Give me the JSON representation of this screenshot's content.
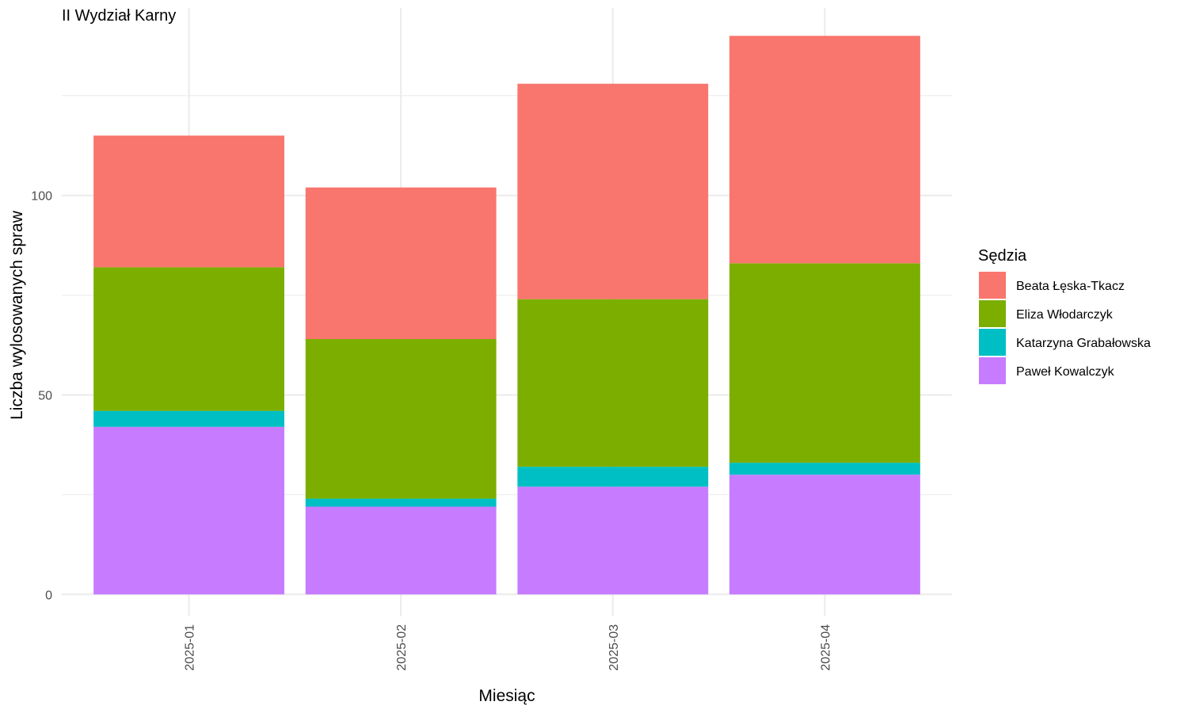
{
  "chart_data": {
    "type": "bar",
    "stacked": true,
    "title": "II Wydział Karny",
    "xlabel": "Miesiąc",
    "ylabel": "Liczba wylosowanych spraw",
    "categories": [
      "2025-01",
      "2025-02",
      "2025-03",
      "2025-04"
    ],
    "ylim": [
      -5.5,
      147
    ],
    "yticks": [
      0,
      50,
      100
    ],
    "grid": true,
    "legend": {
      "title": "Sędzia",
      "position": "right"
    },
    "series": [
      {
        "name": "Paweł Kowalczyk",
        "color": "#C77CFF",
        "values": [
          42,
          22,
          27,
          30
        ]
      },
      {
        "name": "Katarzyna Grabałowska",
        "color": "#00BFC4",
        "values": [
          4,
          2,
          5,
          3
        ]
      },
      {
        "name": "Eliza Włodarczyk",
        "color": "#7CAE00",
        "values": [
          36,
          40,
          42,
          50
        ]
      },
      {
        "name": "Beata Łęska-Tkacz",
        "color": "#F8766D",
        "values": [
          33,
          38,
          54,
          57
        ]
      }
    ]
  }
}
